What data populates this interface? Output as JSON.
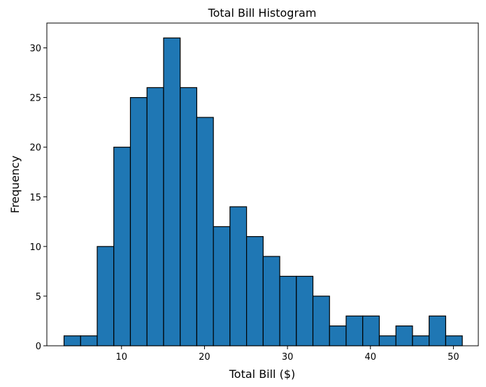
{
  "chart_data": {
    "type": "bar",
    "subtype": "histogram",
    "title": "Total Bill Histogram",
    "xlabel": "Total Bill ($)",
    "ylabel": "Frequency",
    "xlim": [
      1.0,
      53.0
    ],
    "ylim": [
      0,
      32.5
    ],
    "xticks": [
      10,
      20,
      30,
      40,
      50
    ],
    "yticks": [
      0,
      5,
      10,
      15,
      20,
      25,
      30
    ],
    "grid": false,
    "bar_color": "#1f77b4",
    "edge_color": "#000000",
    "bin_edges": [
      3.07,
      5.07,
      7.07,
      9.07,
      11.07,
      13.07,
      15.07,
      17.07,
      19.07,
      21.07,
      23.07,
      25.07,
      27.07,
      29.07,
      31.07,
      33.07,
      35.07,
      37.07,
      39.07,
      41.07,
      43.07,
      45.07,
      47.07,
      49.07,
      51.07
    ],
    "counts": [
      1,
      1,
      10,
      20,
      25,
      26,
      31,
      26,
      23,
      12,
      14,
      11,
      9,
      7,
      7,
      5,
      2,
      3,
      3,
      1,
      2,
      1,
      3,
      1
    ]
  }
}
